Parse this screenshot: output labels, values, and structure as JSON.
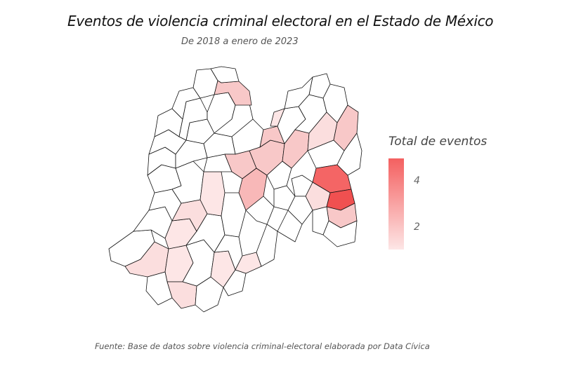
{
  "title": "Eventos de violencia criminal electoral en el Estado de México",
  "subtitle": "De 2018 a enero de 2023",
  "caption": "Fuente: Base de datos sobre violencia criminal-electoral elaborada por Data Cívica",
  "legend": {
    "title": "Total de eventos",
    "ticks": [
      "4",
      "2"
    ],
    "color_low": "#fde6e6",
    "color_high": "#f46060"
  },
  "map_fill": {
    "none": "#ffffff",
    "low": "#fde6e6",
    "mid": "#f8b8b8",
    "high": "#f46060",
    "border": "#111111"
  }
}
